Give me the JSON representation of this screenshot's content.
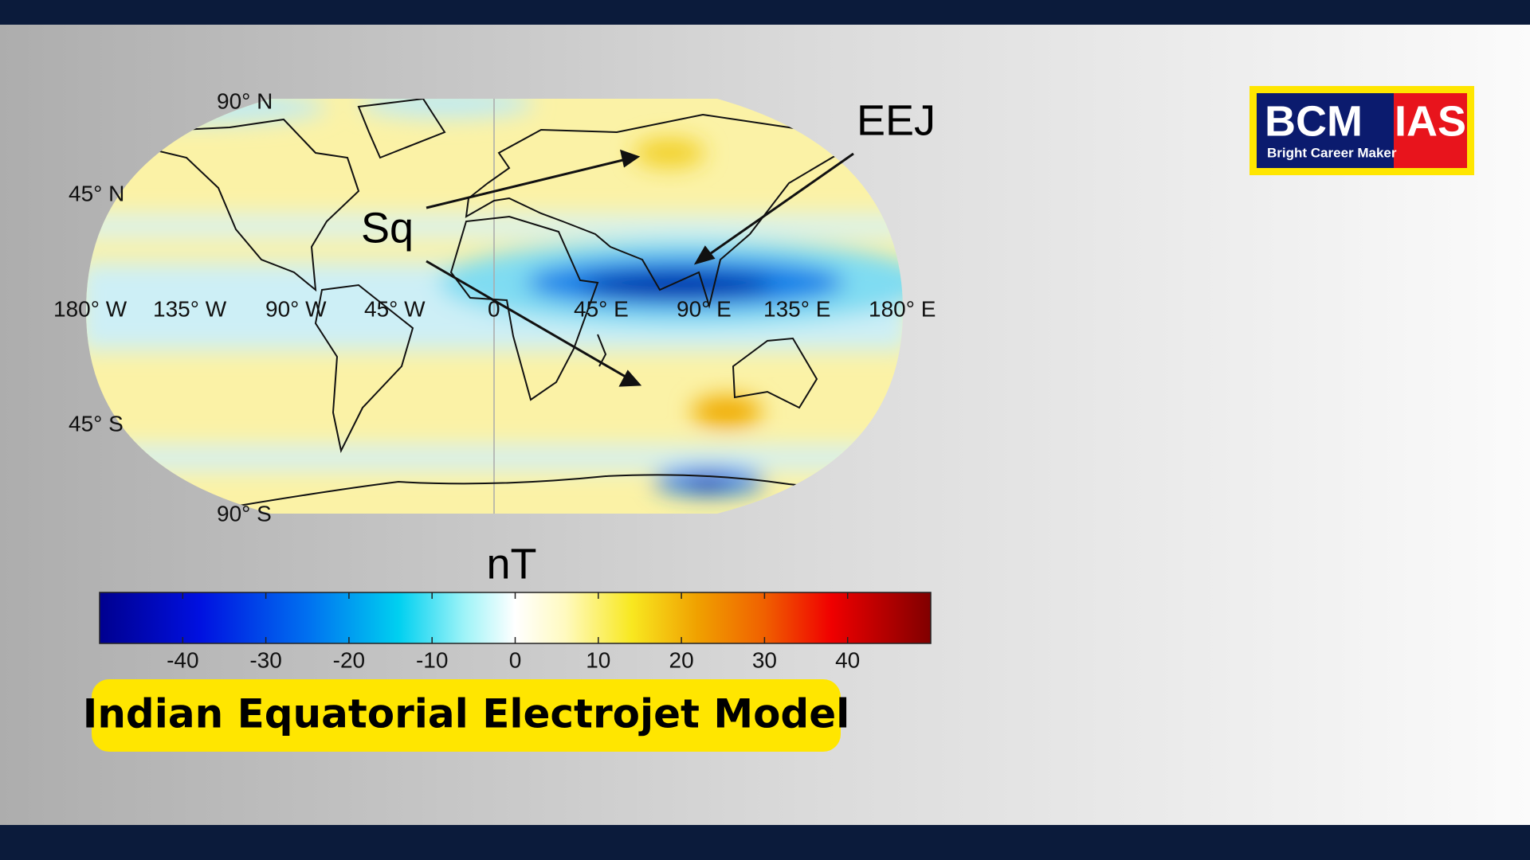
{
  "logo": {
    "name": "BCM",
    "suffix": "IAS",
    "tagline": "Bright Career Maker"
  },
  "map": {
    "latitude_labels": [
      "90° N",
      "45° N",
      "45° S",
      "90° S"
    ],
    "longitude_labels": [
      "180° W",
      "135° W",
      "90° W",
      "45° W",
      "0",
      "45° E",
      "90° E",
      "135° E",
      "180° E"
    ],
    "annotations": [
      "Sq",
      "EEJ"
    ]
  },
  "colorbar": {
    "type": "colorbar",
    "label": "nT",
    "lim": [
      -50,
      50
    ],
    "ticks": [
      -40,
      -30,
      -20,
      -10,
      0,
      10,
      20,
      30,
      40
    ]
  },
  "title": "Indian Equatorial Electrojet Model"
}
